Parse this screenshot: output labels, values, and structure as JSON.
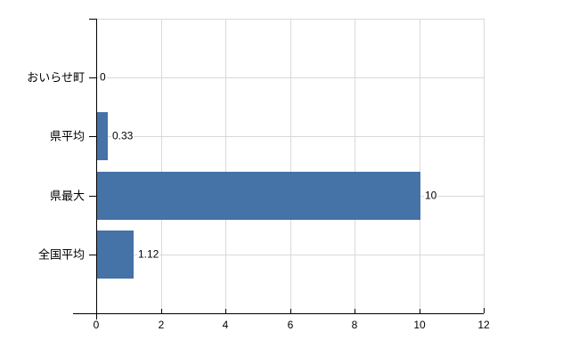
{
  "chart_data": {
    "type": "bar",
    "orientation": "horizontal",
    "title": "",
    "xlabel": "",
    "ylabel": "",
    "categories": [
      "おいらせ町",
      "県平均",
      "県最大",
      "全国平均"
    ],
    "values": [
      0,
      0.33,
      10,
      1.12
    ],
    "value_labels": [
      "0",
      "0.33",
      "10",
      "1.12"
    ],
    "xlim": [
      0,
      12
    ],
    "xticks": [
      0,
      2,
      4,
      6,
      8,
      10,
      12
    ],
    "xtick_labels": [
      "0",
      "2",
      "4",
      "6",
      "8",
      "10",
      "12"
    ],
    "grid": true,
    "legend": false,
    "colors": {
      "bar": "#4572a7",
      "grid": "#d9d9d9",
      "axis": "#000000",
      "text": "#000000",
      "background": "#ffffff"
    }
  }
}
